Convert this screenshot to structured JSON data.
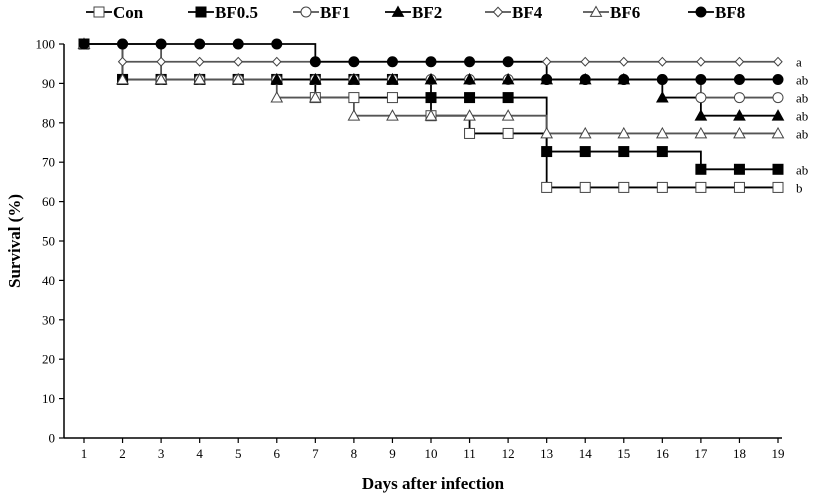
{
  "chart_data": {
    "type": "line",
    "title": "",
    "xlabel": "Days after infection",
    "ylabel": "Survival (%)",
    "xlim": [
      1,
      19
    ],
    "ylim": [
      0,
      100
    ],
    "x": [
      1,
      2,
      3,
      4,
      5,
      6,
      7,
      8,
      9,
      10,
      11,
      12,
      13,
      14,
      15,
      16,
      17,
      18,
      19
    ],
    "y_ticks": [
      0,
      10,
      20,
      30,
      40,
      50,
      60,
      70,
      80,
      90,
      100
    ],
    "grid": false,
    "legend_position": "top",
    "series": [
      {
        "name": "Con",
        "marker": "square-open",
        "line_color": "#000000",
        "values": [
          100,
          91,
          91,
          91,
          91,
          91,
          86.4,
          86.4,
          86.4,
          81.8,
          77.3,
          77.3,
          63.6,
          63.6,
          63.6,
          63.6,
          63.6,
          63.6,
          63.6
        ]
      },
      {
        "name": "BF0.5",
        "marker": "square-filled",
        "line_color": "#000000",
        "values": [
          100,
          91,
          91,
          91,
          91,
          91,
          91,
          91,
          91,
          86.4,
          86.4,
          86.4,
          72.7,
          72.7,
          72.7,
          72.7,
          68.2,
          68.2,
          68.2
        ]
      },
      {
        "name": "BF1",
        "marker": "circle-open",
        "line_color": "#555555",
        "values": [
          100,
          100,
          91,
          91,
          91,
          91,
          91,
          91,
          91,
          91,
          91,
          91,
          91,
          91,
          91,
          91,
          86.4,
          86.4,
          86.4
        ]
      },
      {
        "name": "BF2",
        "marker": "triangle-filled",
        "line_color": "#000000",
        "values": [
          100,
          91,
          91,
          91,
          91,
          91,
          91,
          91,
          91,
          91,
          91,
          91,
          91,
          91,
          91,
          86.4,
          81.8,
          81.8,
          81.8
        ]
      },
      {
        "name": "BF4",
        "marker": "diamond-open",
        "line_color": "#555555",
        "values": [
          100,
          95.5,
          95.5,
          95.5,
          95.5,
          95.5,
          95.5,
          95.5,
          95.5,
          95.5,
          95.5,
          95.5,
          95.5,
          95.5,
          95.5,
          95.5,
          95.5,
          95.5,
          95.5
        ]
      },
      {
        "name": "BF6",
        "marker": "triangle-open",
        "line_color": "#555555",
        "values": [
          100,
          91,
          91,
          91,
          91,
          86.4,
          86.4,
          81.8,
          81.8,
          81.8,
          81.8,
          81.8,
          77.3,
          77.3,
          77.3,
          77.3,
          77.3,
          77.3,
          77.3
        ]
      },
      {
        "name": "BF8",
        "marker": "circle-filled",
        "line_color": "#000000",
        "values": [
          100,
          100,
          100,
          100,
          100,
          100,
          95.5,
          95.5,
          95.5,
          95.5,
          95.5,
          95.5,
          91,
          91,
          91,
          91,
          91,
          91,
          91
        ]
      }
    ],
    "annotations": [
      {
        "text": "a",
        "y": 95.5
      },
      {
        "text": "ab",
        "y": 91
      },
      {
        "text": "ab",
        "y": 86.4
      },
      {
        "text": "ab",
        "y": 81.8
      },
      {
        "text": "ab",
        "y": 77.3
      },
      {
        "text": "ab",
        "y": 68.2
      },
      {
        "text": "b",
        "y": 63.6
      }
    ]
  }
}
